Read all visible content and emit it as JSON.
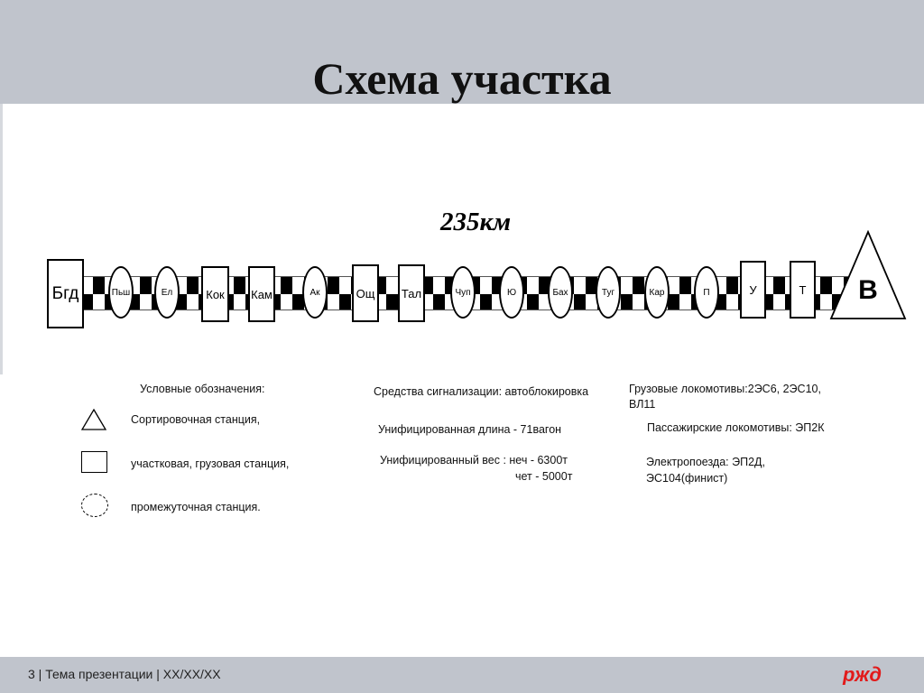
{
  "header": {
    "title": "Схема участка"
  },
  "scheme": {
    "distance": "235км",
    "stations": [
      {
        "name": "Бгд",
        "type": "square"
      },
      {
        "name": "Пьш",
        "type": "circle"
      },
      {
        "name": "Ел",
        "type": "circle"
      },
      {
        "name": "Кок",
        "type": "square"
      },
      {
        "name": "Кам",
        "type": "square"
      },
      {
        "name": "Ак",
        "type": "circle"
      },
      {
        "name": "Ощ",
        "type": "square"
      },
      {
        "name": "Тал",
        "type": "square"
      },
      {
        "name": "Чуп",
        "type": "circle"
      },
      {
        "name": "Ю",
        "type": "circle"
      },
      {
        "name": "Бах",
        "type": "circle"
      },
      {
        "name": "Туг",
        "type": "circle"
      },
      {
        "name": "Кар",
        "type": "circle"
      },
      {
        "name": "П",
        "type": "circle"
      },
      {
        "name": "У",
        "type": "square"
      },
      {
        "name": "Т",
        "type": "square"
      },
      {
        "name": "В",
        "type": "triangle"
      }
    ]
  },
  "legend": {
    "title": "Условные обозначения:",
    "triangle": "Сортировочная станция,",
    "square": "участковая, грузовая станция,",
    "circle": "промежуточная станция."
  },
  "info": {
    "signaling": "Средства сигнализации: автоблокировка",
    "length": "Унифицированная длина -  71вагон",
    "weight": "Унифицированный вес : неч -  6300т",
    "weight2": "чет -  5000т",
    "freight": "Грузовые локомотивы:2ЭС6, 2ЭС10,",
    "freight2": "ВЛ11",
    "passenger": "Пассажирские локомотивы: ЭП2К",
    "emu": "Электропоезда: ЭП2Д,",
    "emu2": "ЭС104(финист)"
  },
  "footer": {
    "text": "3   | Тема презентации | XX/XX/XX",
    "logo": "ржд",
    "logo_color": "#e21a1a"
  }
}
